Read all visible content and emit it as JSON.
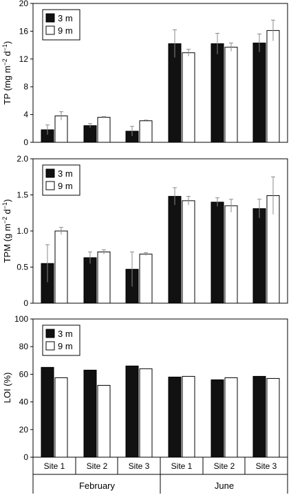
{
  "chart_data": [
    {
      "type": "bar",
      "panel": "TP",
      "ylabel_main": "TP (mg m",
      "ylabel_sup1": "−2",
      "ylabel_mid": " d",
      "ylabel_sup2": "−1",
      "ylabel_end": ")",
      "ylim": [
        0,
        20
      ],
      "yticks": [
        "0",
        "4",
        "8",
        "12",
        "16",
        "20"
      ],
      "legend_position": "top-left",
      "series": [
        {
          "name": "3 m",
          "values": [
            1.8,
            2.4,
            1.6,
            14.2,
            14.2,
            14.3
          ],
          "errors": [
            0.7,
            0.3,
            0.7,
            2.0,
            1.5,
            1.3
          ]
        },
        {
          "name": "9 m",
          "values": [
            3.8,
            3.6,
            3.1,
            12.9,
            13.7,
            16.1
          ],
          "errors": [
            0.6,
            0.1,
            0.1,
            0.5,
            0.6,
            1.5
          ]
        }
      ]
    },
    {
      "type": "bar",
      "panel": "TPM",
      "ylabel_main": "TPM (g m",
      "ylabel_sup1": "−2",
      "ylabel_mid": " d",
      "ylabel_sup2": "−1",
      "ylabel_end": ")",
      "ylim": [
        0,
        2.0
      ],
      "yticks": [
        "0",
        "0.5",
        "1.0",
        "1.5",
        "2.0"
      ],
      "legend_position": "top-left",
      "series": [
        {
          "name": "3 m",
          "values": [
            0.55,
            0.63,
            0.47,
            1.48,
            1.4,
            1.31
          ],
          "errors": [
            0.26,
            0.08,
            0.24,
            0.12,
            0.06,
            0.13
          ]
        },
        {
          "name": "9 m",
          "values": [
            1.0,
            0.71,
            0.68,
            1.42,
            1.35,
            1.49
          ],
          "errors": [
            0.05,
            0.03,
            0.02,
            0.06,
            0.09,
            0.26
          ]
        }
      ]
    },
    {
      "type": "bar",
      "panel": "LOI",
      "ylabel_main": "LOI (%)",
      "ylim": [
        0,
        100
      ],
      "yticks": [
        "0",
        "20",
        "40",
        "60",
        "80",
        "100"
      ],
      "legend_position": "top-left",
      "series": [
        {
          "name": "3 m",
          "values": [
            65,
            63,
            66,
            58,
            56,
            58.5
          ]
        },
        {
          "name": "9 m",
          "values": [
            57.5,
            52,
            64,
            58.5,
            57.5,
            57
          ]
        }
      ]
    }
  ],
  "x_axis": {
    "categories": [
      "Site 1",
      "Site 2",
      "Site 3",
      "Site 1",
      "Site 2",
      "Site 3"
    ],
    "groups": [
      "February",
      "June"
    ]
  },
  "colors": {
    "series_3m": "#111111",
    "series_9m": "#ffffff",
    "error_bar": "#888888"
  }
}
